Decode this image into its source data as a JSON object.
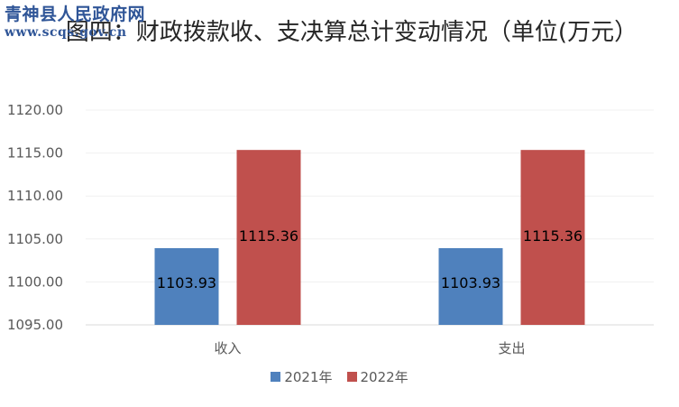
{
  "watermark": {
    "name": "青神县人民政府网",
    "url": "www.scqs.gov.cn"
  },
  "chart_data": {
    "type": "bar",
    "title": "图四：财政拨款收、支决算总计变动情况（单位(万元）",
    "categories": [
      "收入",
      "支出"
    ],
    "series": [
      {
        "name": "2021年",
        "values": [
          1103.93,
          1103.93
        ],
        "labels": [
          "1103.93",
          "1103.93"
        ],
        "color": "#4f81bd"
      },
      {
        "name": "2022年",
        "values": [
          1115.36,
          1115.36
        ],
        "labels": [
          "1115.36",
          "1115.36"
        ],
        "color": "#c0504d"
      }
    ],
    "ylim": [
      1095,
      1120
    ],
    "yticks": [
      "1095.00",
      "1100.00",
      "1105.00",
      "1110.00",
      "1115.00",
      "1120.00"
    ],
    "grid": true,
    "legend_position": "bottom"
  }
}
